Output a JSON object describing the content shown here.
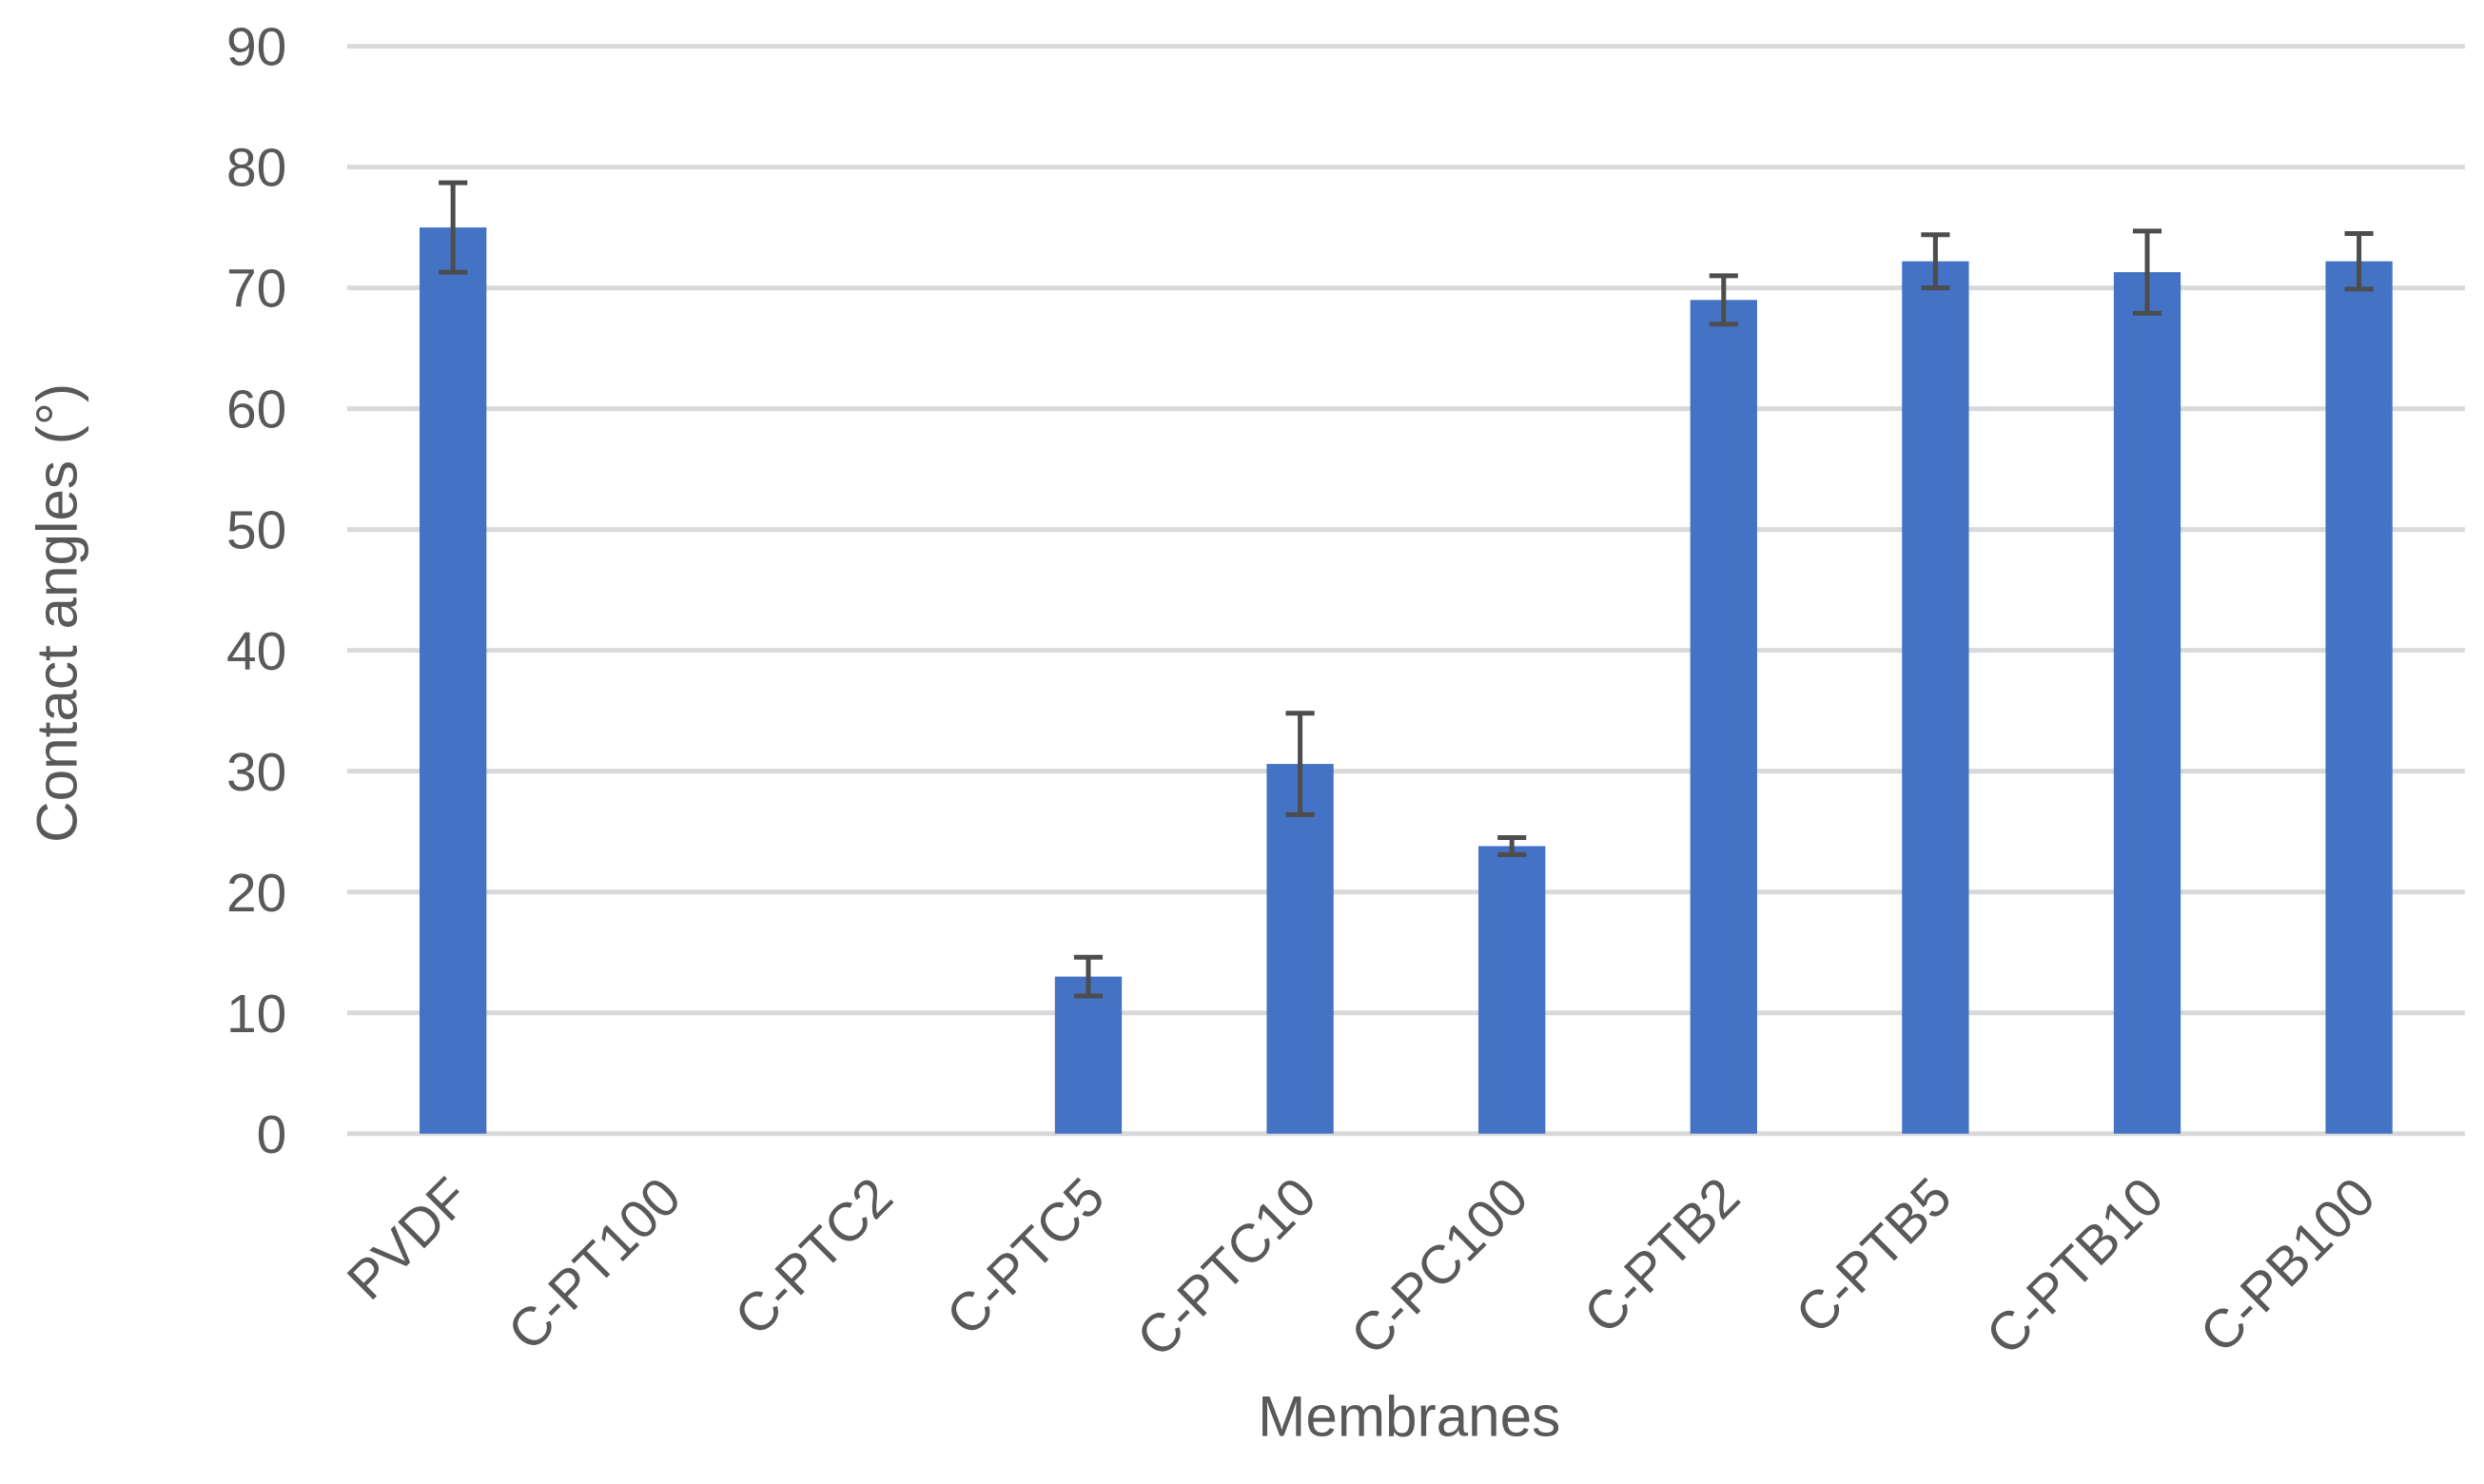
{
  "chart_data": {
    "type": "bar",
    "x_label": "Membranes",
    "y_label": "Contact angles (°)",
    "categories": [
      "PVDF",
      "C-PT100",
      "C-PTC2",
      "C-PTC5",
      "C-PTC10",
      "C-PC100",
      "C-PTB2",
      "C-PTB5",
      "C-PTB10",
      "C-PB100"
    ],
    "values": [
      75,
      0,
      0,
      13,
      30.6,
      23.8,
      69,
      72.2,
      71.3,
      72.2
    ],
    "errors": [
      3.7,
      null,
      null,
      1.6,
      4.2,
      0.7,
      2,
      2.2,
      3.4,
      2.3
    ],
    "color": "#4472c4",
    "error_color": "#4d4d4d",
    "ylim": [
      0,
      90
    ],
    "yticks": [
      0,
      10,
      20,
      30,
      40,
      50,
      60,
      70,
      80,
      90
    ],
    "grid": true
  }
}
